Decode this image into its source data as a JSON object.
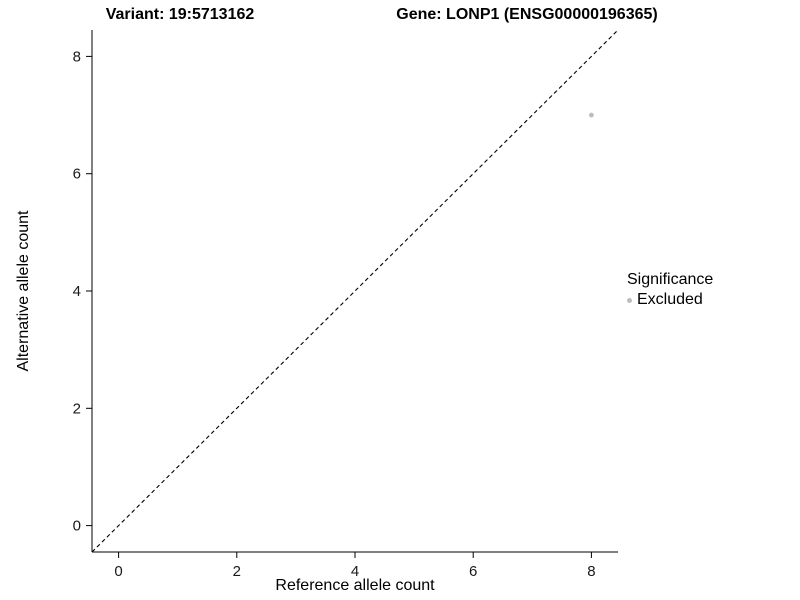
{
  "header": {
    "variant_title": "Variant: 19:5713162",
    "gene_title": "Gene: LONP1 (ENSG00000196365)"
  },
  "legend": {
    "title": "Significance",
    "items": [
      {
        "label": "Excluded",
        "color": "#bdbdbd"
      }
    ]
  },
  "chart_data": {
    "type": "scatter",
    "title_left": "Variant: 19:5713162",
    "title_right": "Gene: LONP1 (ENSG00000196365)",
    "xlabel": "Reference allele count",
    "ylabel": "Alternative allele count",
    "xlim": [
      -0.45,
      8.45
    ],
    "ylim": [
      -0.45,
      8.45
    ],
    "xticks": [
      0,
      2,
      4,
      6,
      8
    ],
    "yticks": [
      0,
      2,
      4,
      6,
      8
    ],
    "grid": false,
    "legend_position": "right",
    "reference_line": {
      "kind": "identity",
      "equation": "y = x",
      "style": "dashed",
      "color": "#000000"
    },
    "series": [
      {
        "name": "Excluded",
        "color": "#bdbdbd",
        "points": [
          {
            "x": 8,
            "y": 7
          }
        ]
      }
    ]
  }
}
